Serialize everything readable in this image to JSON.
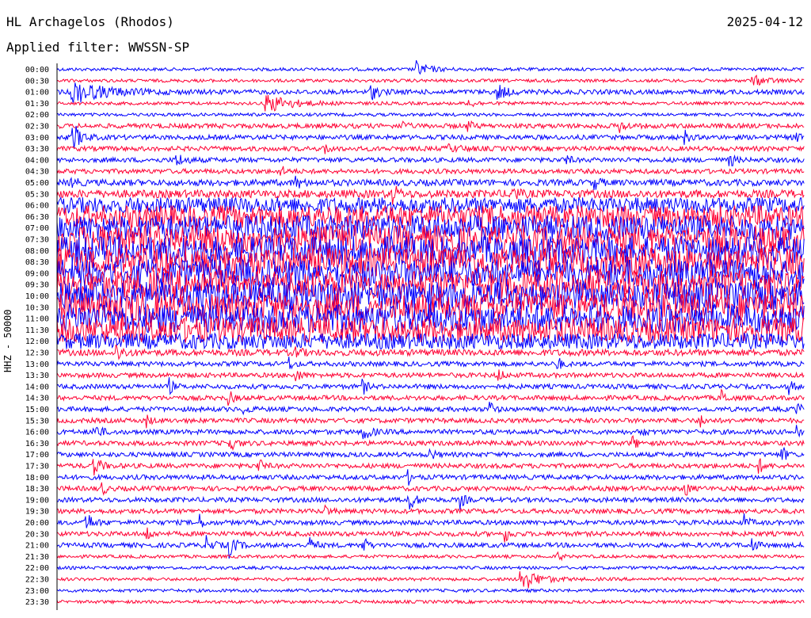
{
  "header": {
    "station": "HL Archagelos (Rhodos)",
    "date": "2025-04-12",
    "filter": "Applied filter: WWSSN-SP"
  },
  "chart_data": {
    "type": "line",
    "title": "HL Archagelos (Rhodos)",
    "ylabel": "HHZ - 50000",
    "xlabel": "",
    "trace_colors": [
      "#0000ff",
      "#ff0033"
    ],
    "rows": [
      {
        "time": "00:00",
        "color": "#0000ff",
        "amp": 2,
        "events": [
          [
            0.48,
            10,
            0.015
          ]
        ]
      },
      {
        "time": "00:30",
        "color": "#ff0033",
        "amp": 2,
        "events": [
          [
            0.93,
            6,
            0.02
          ]
        ]
      },
      {
        "time": "01:00",
        "color": "#0000ff",
        "amp": 3,
        "events": [
          [
            0.02,
            14,
            0.04
          ],
          [
            0.42,
            9,
            0.01
          ],
          [
            0.59,
            10,
            0.01
          ]
        ]
      },
      {
        "time": "01:30",
        "color": "#ff0033",
        "amp": 2,
        "events": [
          [
            0.28,
            12,
            0.03
          ],
          [
            0.55,
            5,
            0.01
          ]
        ]
      },
      {
        "time": "02:00",
        "color": "#0000ff",
        "amp": 2,
        "events": []
      },
      {
        "time": "02:30",
        "color": "#ff0033",
        "amp": 3,
        "events": [
          [
            0.46,
            8,
            0.005
          ],
          [
            0.55,
            7,
            0.005
          ],
          [
            0.75,
            10,
            0.008
          ]
        ]
      },
      {
        "time": "03:00",
        "color": "#0000ff",
        "amp": 3,
        "events": [
          [
            0.02,
            20,
            0.01
          ],
          [
            0.84,
            8,
            0.005
          ],
          [
            0.99,
            9,
            0.005
          ]
        ]
      },
      {
        "time": "03:30",
        "color": "#ff0033",
        "amp": 3,
        "events": [
          [
            0.36,
            6,
            0.005
          ],
          [
            0.52,
            4,
            0.02
          ]
        ]
      },
      {
        "time": "04:00",
        "color": "#0000ff",
        "amp": 3,
        "events": [
          [
            0.16,
            8,
            0.01
          ],
          [
            0.68,
            8,
            0.005
          ],
          [
            0.9,
            10,
            0.005
          ]
        ]
      },
      {
        "time": "04:30",
        "color": "#ff0033",
        "amp": 3,
        "events": [
          [
            0.3,
            6,
            0.005
          ]
        ]
      },
      {
        "time": "05:00",
        "color": "#0000ff",
        "amp": 4,
        "events": [
          [
            0.02,
            8,
            0.005
          ],
          [
            0.32,
            8,
            0.005
          ],
          [
            0.72,
            7,
            0.005
          ]
        ]
      },
      {
        "time": "05:30",
        "color": "#ff0033",
        "amp": 5,
        "events": [
          [
            0.45,
            12,
            0.005
          ],
          [
            0.61,
            10,
            0.005
          ]
        ]
      },
      {
        "time": "06:00",
        "color": "#0000ff",
        "amp": 10,
        "events": []
      },
      {
        "time": "06:30",
        "color": "#ff0033",
        "amp": 14,
        "events": []
      },
      {
        "time": "07:00",
        "color": "#0000ff",
        "amp": 16,
        "events": []
      },
      {
        "time": "07:30",
        "color": "#ff0033",
        "amp": 18,
        "events": []
      },
      {
        "time": "08:00",
        "color": "#0000ff",
        "amp": 18,
        "events": []
      },
      {
        "time": "08:30",
        "color": "#ff0033",
        "amp": 18,
        "events": []
      },
      {
        "time": "09:00",
        "color": "#0000ff",
        "amp": 18,
        "events": []
      },
      {
        "time": "09:30",
        "color": "#ff0033",
        "amp": 18,
        "events": []
      },
      {
        "time": "10:00",
        "color": "#0000ff",
        "amp": 18,
        "events": []
      },
      {
        "time": "10:30",
        "color": "#ff0033",
        "amp": 18,
        "events": [
          [
            0.08,
            16,
            0.02
          ]
        ]
      },
      {
        "time": "11:00",
        "color": "#0000ff",
        "amp": 18,
        "events": []
      },
      {
        "time": "11:30",
        "color": "#ff0033",
        "amp": 16,
        "events": []
      },
      {
        "time": "12:00",
        "color": "#0000ff",
        "amp": 10,
        "events": []
      },
      {
        "time": "12:30",
        "color": "#ff0033",
        "amp": 4,
        "events": [
          [
            0.08,
            10,
            0.008
          ],
          [
            0.32,
            9,
            0.005
          ]
        ]
      },
      {
        "time": "13:00",
        "color": "#0000ff",
        "amp": 3,
        "events": [
          [
            0.31,
            9,
            0.005
          ],
          [
            0.67,
            8,
            0.005
          ]
        ]
      },
      {
        "time": "13:30",
        "color": "#ff0033",
        "amp": 3,
        "events": [
          [
            0.32,
            9,
            0.005
          ],
          [
            0.59,
            9,
            0.005
          ]
        ]
      },
      {
        "time": "14:00",
        "color": "#0000ff",
        "amp": 3,
        "events": [
          [
            0.15,
            10,
            0.005
          ],
          [
            0.41,
            8,
            0.005
          ],
          [
            0.98,
            8,
            0.005
          ]
        ]
      },
      {
        "time": "14:30",
        "color": "#ff0033",
        "amp": 3,
        "events": [
          [
            0.23,
            9,
            0.005
          ],
          [
            0.89,
            10,
            0.005
          ]
        ]
      },
      {
        "time": "15:00",
        "color": "#0000ff",
        "amp": 3,
        "events": [
          [
            0.25,
            9,
            0.005
          ],
          [
            0.58,
            8,
            0.005
          ],
          [
            0.99,
            9,
            0.005
          ]
        ]
      },
      {
        "time": "15:30",
        "color": "#ff0033",
        "amp": 3,
        "events": [
          [
            0.12,
            7,
            0.005
          ],
          [
            0.86,
            8,
            0.005
          ]
        ]
      },
      {
        "time": "16:00",
        "color": "#0000ff",
        "amp": 3,
        "events": [
          [
            0.05,
            10,
            0.008
          ],
          [
            0.41,
            12,
            0.008
          ],
          [
            0.78,
            8,
            0.005
          ],
          [
            0.99,
            10,
            0.005
          ]
        ]
      },
      {
        "time": "16:30",
        "color": "#ff0033",
        "amp": 3,
        "events": [
          [
            0.23,
            10,
            0.008
          ],
          [
            0.77,
            9,
            0.005
          ]
        ]
      },
      {
        "time": "17:00",
        "color": "#0000ff",
        "amp": 3,
        "events": [
          [
            0.5,
            7,
            0.005
          ],
          [
            0.97,
            10,
            0.005
          ]
        ]
      },
      {
        "time": "17:30",
        "color": "#ff0033",
        "amp": 3,
        "events": [
          [
            0.05,
            12,
            0.008
          ],
          [
            0.27,
            9,
            0.005
          ],
          [
            0.94,
            8,
            0.005
          ]
        ]
      },
      {
        "time": "18:00",
        "color": "#0000ff",
        "amp": 3,
        "events": [
          [
            0.47,
            8,
            0.005
          ]
        ]
      },
      {
        "time": "18:30",
        "color": "#ff0033",
        "amp": 3,
        "events": [
          [
            0.06,
            8,
            0.005
          ],
          [
            0.84,
            10,
            0.005
          ]
        ]
      },
      {
        "time": "19:00",
        "color": "#0000ff",
        "amp": 3,
        "events": [
          [
            0.47,
            14,
            0.008
          ],
          [
            0.54,
            10,
            0.005
          ]
        ]
      },
      {
        "time": "19:30",
        "color": "#ff0033",
        "amp": 3,
        "events": [
          [
            0.36,
            6,
            0.005
          ]
        ]
      },
      {
        "time": "20:00",
        "color": "#0000ff",
        "amp": 3,
        "events": [
          [
            0.04,
            12,
            0.008
          ],
          [
            0.19,
            10,
            0.005
          ],
          [
            0.92,
            9,
            0.005
          ]
        ]
      },
      {
        "time": "20:30",
        "color": "#ff0033",
        "amp": 3,
        "events": [
          [
            0.12,
            10,
            0.005
          ],
          [
            0.6,
            10,
            0.005
          ]
        ]
      },
      {
        "time": "21:00",
        "color": "#0000ff",
        "amp": 3,
        "events": [
          [
            0.2,
            10,
            0.008
          ],
          [
            0.23,
            14,
            0.008
          ],
          [
            0.34,
            10,
            0.005
          ],
          [
            0.41,
            10,
            0.005
          ],
          [
            0.93,
            10,
            0.005
          ]
        ]
      },
      {
        "time": "21:30",
        "color": "#ff0033",
        "amp": 2,
        "events": [
          [
            0.67,
            6,
            0.005
          ]
        ]
      },
      {
        "time": "22:00",
        "color": "#0000ff",
        "amp": 2,
        "events": []
      },
      {
        "time": "22:30",
        "color": "#ff0033",
        "amp": 2,
        "events": [
          [
            0.62,
            16,
            0.02
          ]
        ]
      },
      {
        "time": "23:00",
        "color": "#0000ff",
        "amp": 2,
        "events": []
      },
      {
        "time": "23:30",
        "color": "#ff0033",
        "amp": 2,
        "events": []
      }
    ]
  }
}
